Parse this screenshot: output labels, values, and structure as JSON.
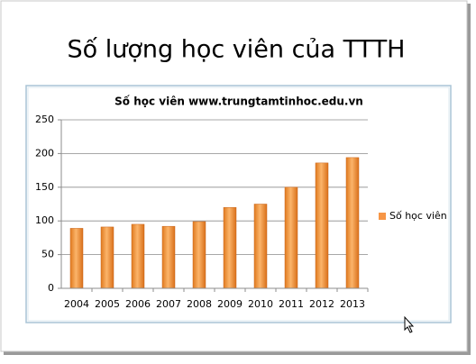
{
  "slide": {
    "title": "Số lượng học viên của TTTH"
  },
  "chart_data": {
    "type": "bar",
    "title": "Số học viên www.trungtamtinhoc.edu.vn",
    "categories": [
      "2004",
      "2005",
      "2006",
      "2007",
      "2008",
      "2009",
      "2010",
      "2011",
      "2012",
      "2013"
    ],
    "series": [
      {
        "name": "Số học viên",
        "color": "#f79646",
        "values": [
          89,
          91,
          95,
          92,
          99,
          120,
          125,
          150,
          186,
          194
        ]
      }
    ],
    "ylim": [
      0,
      250
    ],
    "yticks": [
      0,
      50,
      100,
      150,
      200,
      250
    ],
    "grid": true,
    "legend": "right"
  }
}
